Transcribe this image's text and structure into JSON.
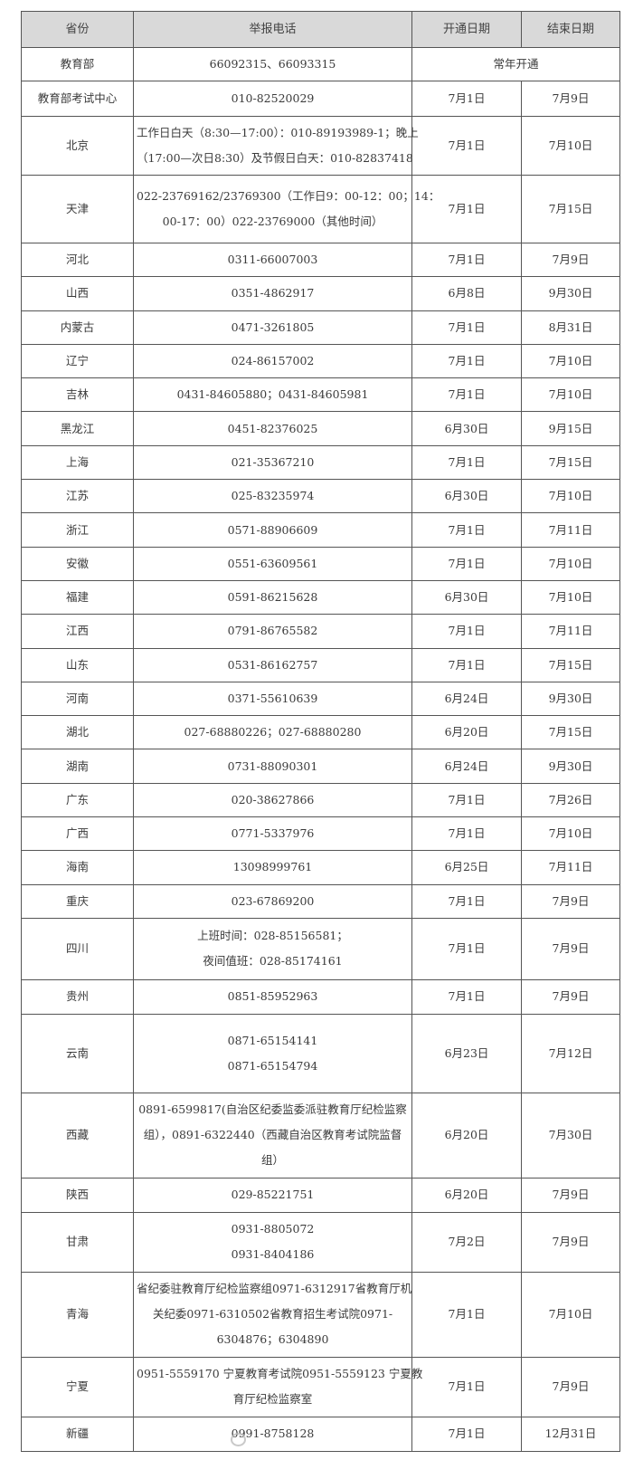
{
  "header": [
    "省份",
    "举报电话",
    "开通日期",
    "结束日期"
  ],
  "ministry": {
    "name": "教育部",
    "phone": "66092315、66093315",
    "period": "常年开通"
  },
  "rows": [
    {
      "province": "教育部考试中心",
      "phone": [
        "010-82520029"
      ],
      "start": "7月1日",
      "end": "7月9日"
    },
    {
      "province": "北京",
      "phone": [
        "工作日白天（8:30—17:00）：010-89193989-1；晚上",
        "（17:00—次日8:30）及节假日白天：010-82837418"
      ],
      "start": "7月1日",
      "end": "7月10日"
    },
    {
      "province": "天津",
      "phone": [
        "022-23769162/23769300（工作日9：00-12：00；14：",
        "00-17：00）022-23769000（其他时间）"
      ],
      "start": "7月1日",
      "end": "7月15日"
    },
    {
      "province": "河北",
      "phone": [
        "0311-66007003"
      ],
      "start": "7月1日",
      "end": "7月9日"
    },
    {
      "province": "山西",
      "phone": [
        "0351-4862917"
      ],
      "start": "6月8日",
      "end": "9月30日"
    },
    {
      "province": "内蒙古",
      "phone": [
        "0471-3261805"
      ],
      "start": "7月1日",
      "end": "8月31日"
    },
    {
      "province": "辽宁",
      "phone": [
        "024-86157002"
      ],
      "start": "7月1日",
      "end": "7月10日"
    },
    {
      "province": "吉林",
      "phone": [
        "0431-84605880；0431-84605981"
      ],
      "start": "7月1日",
      "end": "7月10日"
    },
    {
      "province": "黑龙江",
      "phone": [
        "0451-82376025"
      ],
      "start": "6月30日",
      "end": "9月15日"
    },
    {
      "province": "上海",
      "phone": [
        "021-35367210"
      ],
      "start": "7月1日",
      "end": "7月15日"
    },
    {
      "province": "江苏",
      "phone": [
        "025-83235974"
      ],
      "start": "6月30日",
      "end": "7月10日"
    },
    {
      "province": "浙江",
      "phone": [
        "0571-88906609"
      ],
      "start": "7月1日",
      "end": "7月11日"
    },
    {
      "province": "安徽",
      "phone": [
        "0551-63609561"
      ],
      "start": "7月1日",
      "end": "7月10日"
    },
    {
      "province": "福建",
      "phone": [
        "0591-86215628"
      ],
      "start": "6月30日",
      "end": "7月10日"
    },
    {
      "province": "江西",
      "phone": [
        "0791-86765582"
      ],
      "start": "7月1日",
      "end": "7月11日"
    },
    {
      "province": "山东",
      "phone": [
        "0531-86162757"
      ],
      "start": "7月1日",
      "end": "7月15日"
    },
    {
      "province": "河南",
      "phone": [
        "0371-55610639"
      ],
      "start": "6月24日",
      "end": "9月30日"
    },
    {
      "province": "湖北",
      "phone": [
        "027-68880226；027-68880280"
      ],
      "start": "6月20日",
      "end": "7月15日"
    },
    {
      "province": "湖南",
      "phone": [
        "0731-88090301"
      ],
      "start": "6月24日",
      "end": "9月30日"
    },
    {
      "province": "广东",
      "phone": [
        "020-38627866"
      ],
      "start": "7月1日",
      "end": "7月26日"
    },
    {
      "province": "广西",
      "phone": [
        "0771-5337976"
      ],
      "start": "7月1日",
      "end": "7月10日"
    },
    {
      "province": "海南",
      "phone": [
        "13098999761"
      ],
      "start": "6月25日",
      "end": "7月11日"
    },
    {
      "province": "重庆",
      "phone": [
        "023-67869200"
      ],
      "start": "7月1日",
      "end": "7月9日"
    },
    {
      "province": "四川",
      "phone": [
        "上班时间：028-85156581；",
        "夜间值班：028-85174161"
      ],
      "start": "7月1日",
      "end": "7月9日"
    },
    {
      "province": "贵州",
      "phone": [
        "0851-85952963"
      ],
      "start": "7月1日",
      "end": "7月9日"
    },
    {
      "province": "云南",
      "phone": [
        "0871-65154141",
        "0871-65154794"
      ],
      "start": "6月23日",
      "end": "7月12日"
    },
    {
      "province": "西藏",
      "phone": [
        "0891-6599817(自治区纪委监委派驻教育厅纪检监察",
        "组），0891-6322440（西藏自治区教育考试院监督",
        "组）"
      ],
      "start": "6月20日",
      "end": "7月30日"
    },
    {
      "province": "陕西",
      "phone": [
        "029-85221751"
      ],
      "start": "6月20日",
      "end": "7月9日"
    },
    {
      "province": "甘肃",
      "phone": [
        "0931-8805072",
        "0931-8404186"
      ],
      "start": "7月2日",
      "end": "7月9日"
    },
    {
      "province": "青海",
      "phone": [
        "省纪委驻教育厅纪检监察组0971-6312917省教育厅机",
        "关纪委0971-6310502省教育招生考试院0971-",
        "6304876；6304890"
      ],
      "start": "7月1日",
      "end": "7月10日"
    },
    {
      "province": "宁夏",
      "phone": [
        "0951-5559170 宁夏教育考试院0951-5559123 宁夏教",
        "育厅纪检监察室"
      ],
      "start": "7月1日",
      "end": "7月9日"
    },
    {
      "province": "新疆",
      "phone": [
        "0991-8758128"
      ],
      "start": "7月1日",
      "end": "12月31日"
    }
  ]
}
